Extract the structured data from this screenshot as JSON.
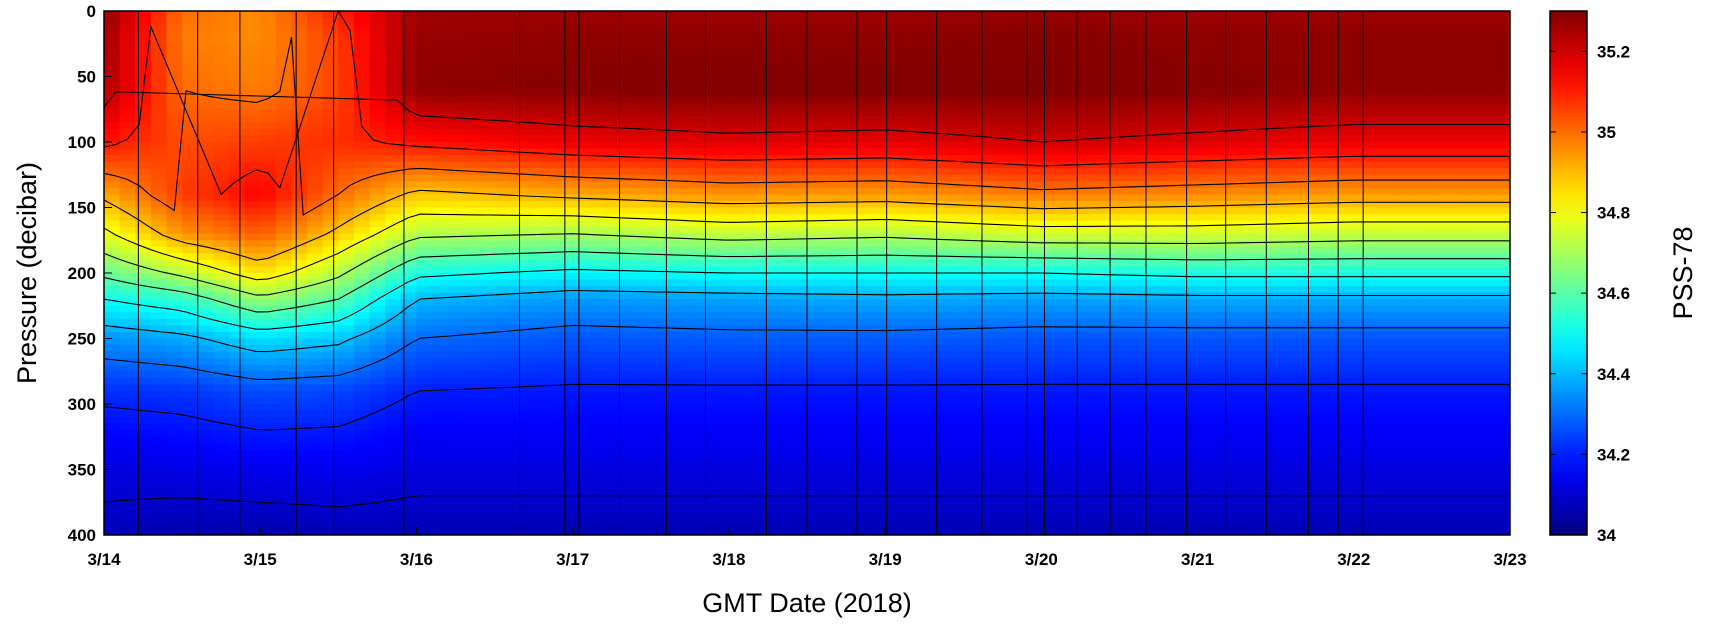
{
  "chart_data": {
    "type": "heatmap",
    "title": "",
    "xlabel": "GMT Date (2018)",
    "ylabel": "Pressure (decibar)",
    "colorbar_label": "PSS-78",
    "x_range": [
      "3/14",
      "3/23"
    ],
    "x_ticks": [
      "3/14",
      "3/15",
      "3/16",
      "3/17",
      "3/18",
      "3/19",
      "3/20",
      "3/21",
      "3/22",
      "3/23"
    ],
    "y_range": [
      400,
      0
    ],
    "y_ticks": [
      "0",
      "50",
      "100",
      "150",
      "200",
      "250",
      "300",
      "350",
      "400"
    ],
    "y_reversed": true,
    "colorbar_range": [
      34,
      35.3
    ],
    "colorbar_ticks": [
      "34",
      "34.2",
      "34.4",
      "34.6",
      "34.8",
      "35",
      "35.2"
    ],
    "colormap": "jet",
    "contour_levels": [
      34.1,
      34.2,
      34.3,
      34.4,
      34.5,
      34.6,
      34.7,
      34.8,
      34.9,
      35.0,
      35.1,
      35.2
    ],
    "profile_times_day_offset": [
      0.22,
      0.6,
      0.87,
      1.23,
      1.47,
      1.92,
      2.66,
      2.95,
      3.04,
      3.3,
      3.6,
      3.85,
      4.24,
      4.5,
      4.82,
      5.01,
      5.33,
      5.62,
      5.91,
      6.02,
      6.23,
      6.44,
      6.67,
      6.93,
      7.18,
      7.44,
      7.71,
      7.9,
      8.06
    ],
    "profiles": [
      {
        "day": 0.0,
        "pressure": [
          0,
          20,
          60,
          100,
          140,
          170,
          200,
          220,
          250,
          290,
          350,
          400
        ],
        "salinity": [
          35.28,
          35.26,
          35.24,
          35.12,
          34.92,
          34.78,
          34.62,
          34.5,
          34.35,
          34.22,
          34.12,
          34.08
        ]
      },
      {
        "day": 0.5,
        "pressure": [
          0,
          20,
          60,
          100,
          140,
          170,
          200,
          220,
          250,
          290,
          350,
          400
        ],
        "salinity": [
          35.0,
          34.98,
          35.0,
          35.04,
          35.06,
          34.95,
          34.72,
          34.55,
          34.38,
          34.23,
          34.13,
          34.06
        ]
      },
      {
        "day": 1.0,
        "pressure": [
          0,
          20,
          60,
          100,
          140,
          170,
          200,
          220,
          250,
          290,
          350,
          400
        ],
        "salinity": [
          34.96,
          34.96,
          34.98,
          35.06,
          35.14,
          35.02,
          34.85,
          34.68,
          34.45,
          34.26,
          34.14,
          34.06
        ]
      },
      {
        "day": 1.5,
        "pressure": [
          0,
          20,
          60,
          100,
          140,
          170,
          200,
          220,
          250,
          290,
          350,
          400
        ],
        "salinity": [
          35.1,
          35.06,
          35.05,
          35.08,
          35.0,
          34.88,
          34.72,
          34.6,
          34.42,
          34.25,
          34.14,
          34.07
        ]
      },
      {
        "day": 2.0,
        "pressure": [
          0,
          20,
          60,
          100,
          140,
          170,
          200,
          220,
          250,
          290,
          350,
          400
        ],
        "salinity": [
          35.26,
          35.27,
          35.28,
          35.12,
          34.88,
          34.72,
          34.52,
          34.4,
          34.3,
          34.2,
          34.12,
          34.07
        ]
      },
      {
        "day": 3.0,
        "pressure": [
          0,
          20,
          60,
          100,
          140,
          170,
          200,
          220,
          250,
          290,
          350,
          400
        ],
        "salinity": [
          35.26,
          35.28,
          35.29,
          35.16,
          34.92,
          34.7,
          34.48,
          34.36,
          34.27,
          34.19,
          34.12,
          34.07
        ]
      },
      {
        "day": 4.0,
        "pressure": [
          0,
          20,
          60,
          100,
          140,
          170,
          200,
          220,
          250,
          290,
          350,
          400
        ],
        "salinity": [
          35.26,
          35.28,
          35.3,
          35.18,
          34.95,
          34.74,
          34.5,
          34.37,
          34.28,
          34.19,
          34.12,
          34.07
        ]
      },
      {
        "day": 5.0,
        "pressure": [
          0,
          20,
          60,
          100,
          140,
          170,
          200,
          220,
          250,
          290,
          350,
          400
        ],
        "salinity": [
          35.26,
          35.28,
          35.3,
          35.17,
          34.94,
          34.72,
          34.5,
          34.38,
          34.28,
          34.19,
          34.12,
          34.07
        ]
      },
      {
        "day": 6.0,
        "pressure": [
          0,
          20,
          60,
          100,
          140,
          170,
          200,
          220,
          250,
          290,
          350,
          400
        ],
        "salinity": [
          35.27,
          35.29,
          35.3,
          35.2,
          34.98,
          34.76,
          34.5,
          34.37,
          34.27,
          34.19,
          34.12,
          34.07
        ]
      },
      {
        "day": 7.0,
        "pressure": [
          0,
          20,
          60,
          100,
          140,
          170,
          200,
          220,
          250,
          290,
          350,
          400
        ],
        "salinity": [
          35.26,
          35.28,
          35.29,
          35.18,
          34.96,
          34.76,
          34.52,
          34.38,
          34.27,
          34.19,
          34.12,
          34.07
        ]
      },
      {
        "day": 8.0,
        "pressure": [
          0,
          20,
          60,
          100,
          140,
          170,
          200,
          220,
          250,
          290,
          350,
          400
        ],
        "salinity": [
          35.26,
          35.28,
          35.28,
          35.16,
          34.94,
          34.74,
          34.52,
          34.38,
          34.27,
          34.19,
          34.12,
          34.07
        ]
      },
      {
        "day": 9.0,
        "pressure": [
          0,
          20,
          60,
          100,
          140,
          170,
          200,
          220,
          250,
          290,
          350,
          400
        ],
        "salinity": [
          35.26,
          35.28,
          35.28,
          35.16,
          34.94,
          34.74,
          34.52,
          34.38,
          34.27,
          34.19,
          34.12,
          34.07
        ]
      }
    ]
  }
}
